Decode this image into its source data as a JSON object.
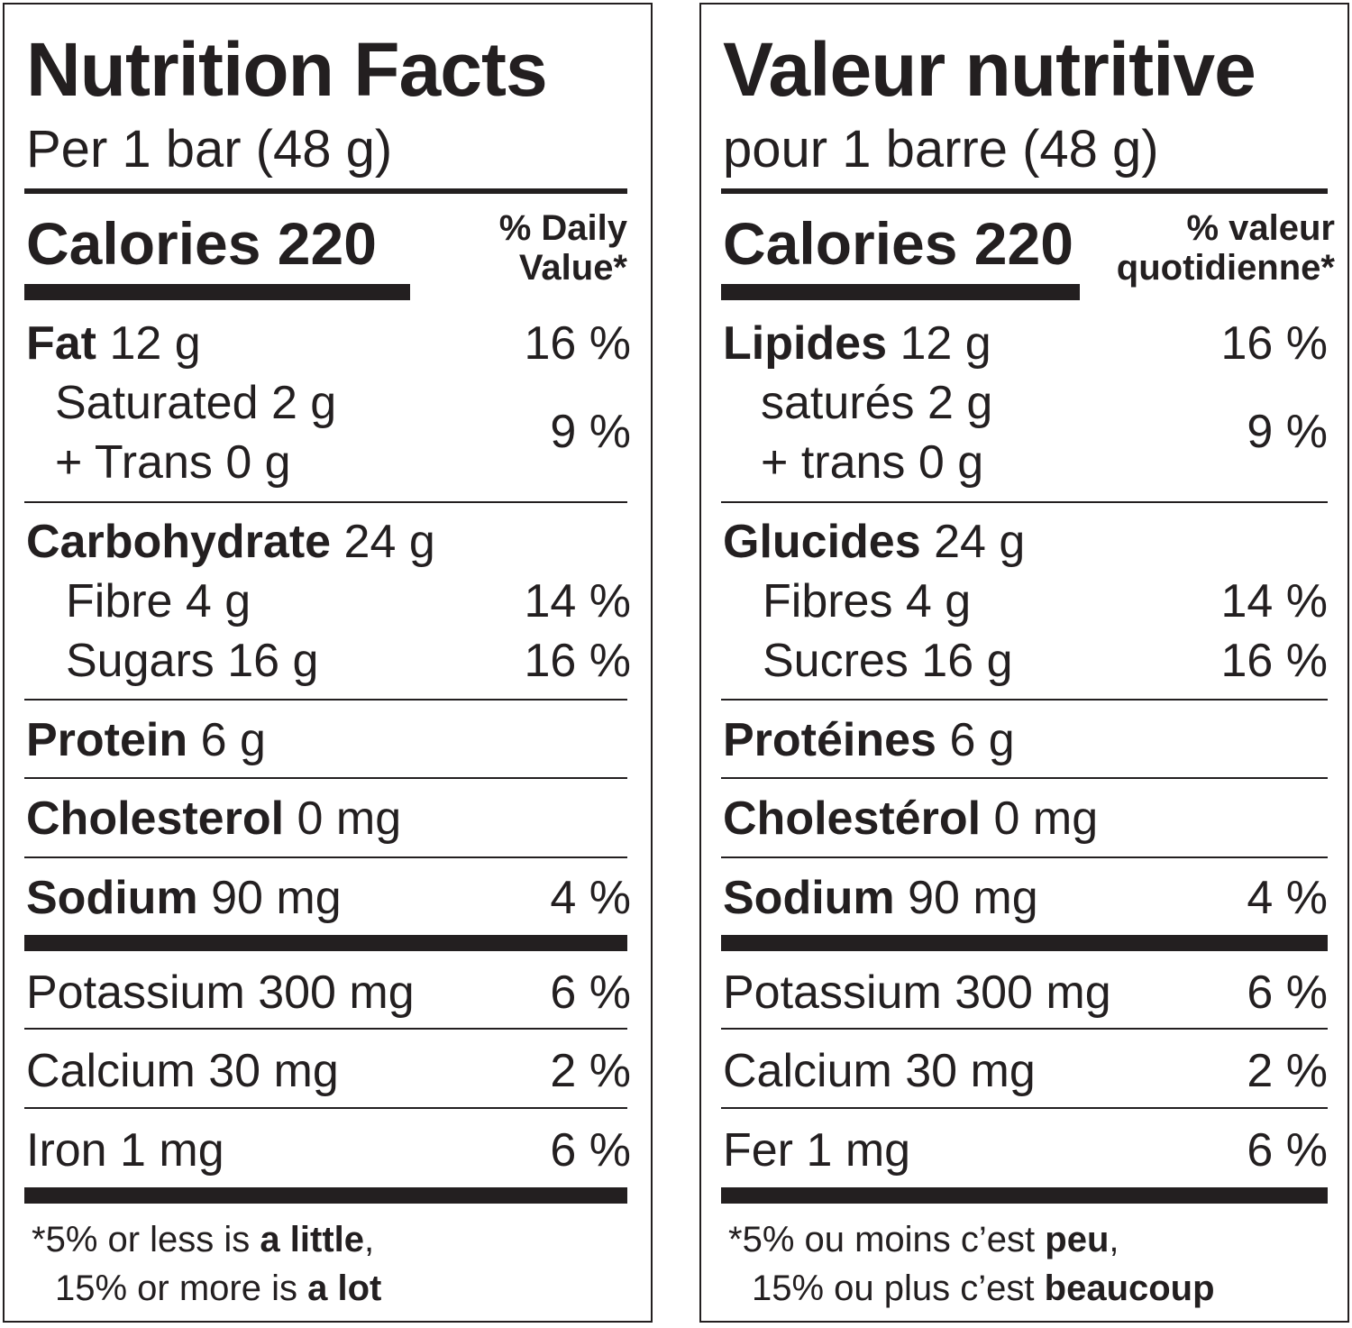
{
  "en": {
    "title": "Nutrition Facts",
    "serving": "Per 1 bar (48 g)",
    "calories_label": "Calories 220",
    "dv_header_line1": "% Daily",
    "dv_header_line2": "Value*",
    "fat_name": "Fat",
    "fat_amount": "12 g",
    "fat_dv": "16 %",
    "saturated": "Saturated 2 g",
    "trans": "+ Trans 0 g",
    "sat_trans_dv": "9 %",
    "carb_name": "Carbohydrate",
    "carb_amount": "24 g",
    "fibre": "Fibre 4 g",
    "fibre_dv": "14 %",
    "sugars": "Sugars 16 g",
    "sugars_dv": "16 %",
    "protein_name": "Protein",
    "protein_amount": "6 g",
    "chol_name": "Cholesterol",
    "chol_amount": "0 mg",
    "sodium_name": "Sodium",
    "sodium_amount": "90 mg",
    "sodium_dv": "4 %",
    "potassium": "Potassium 300 mg",
    "potassium_dv": "6 %",
    "calcium": "Calcium 30 mg",
    "calcium_dv": "2 %",
    "iron": "Iron 1 mg",
    "iron_dv": "6 %",
    "foot1_pre": "*5% or less is ",
    "foot1_bold": "a little",
    "foot1_post": ",",
    "foot2_pre": "15% or more is ",
    "foot2_bold": "a lot"
  },
  "fr": {
    "title": "Valeur nutritive",
    "serving": "pour 1 barre (48 g)",
    "calories_label": "Calories 220",
    "dv_header_line1": "% valeur",
    "dv_header_line2": "quotidienne*",
    "fat_name": "Lipides",
    "fat_amount": "12 g",
    "fat_dv": "16 %",
    "saturated": "saturés 2 g",
    "trans": "+ trans 0 g",
    "sat_trans_dv": "9 %",
    "carb_name": "Glucides",
    "carb_amount": "24 g",
    "fibre": "Fibres 4 g",
    "fibre_dv": "14 %",
    "sugars": "Sucres 16 g",
    "sugars_dv": "16 %",
    "protein_name": "Protéines",
    "protein_amount": "6 g",
    "chol_name": "Cholestérol",
    "chol_amount": "0 mg",
    "sodium_name": "Sodium",
    "sodium_amount": "90 mg",
    "sodium_dv": "4 %",
    "potassium": "Potassium 300 mg",
    "potassium_dv": "6 %",
    "calcium": "Calcium 30 mg",
    "calcium_dv": "2 %",
    "iron": "Fer 1 mg",
    "iron_dv": "6 %",
    "foot1_pre": "*5% ou moins c’est ",
    "foot1_bold": "peu",
    "foot1_post": ",",
    "foot2_pre": "15% ou plus c’est ",
    "foot2_bold": "beaucoup"
  }
}
